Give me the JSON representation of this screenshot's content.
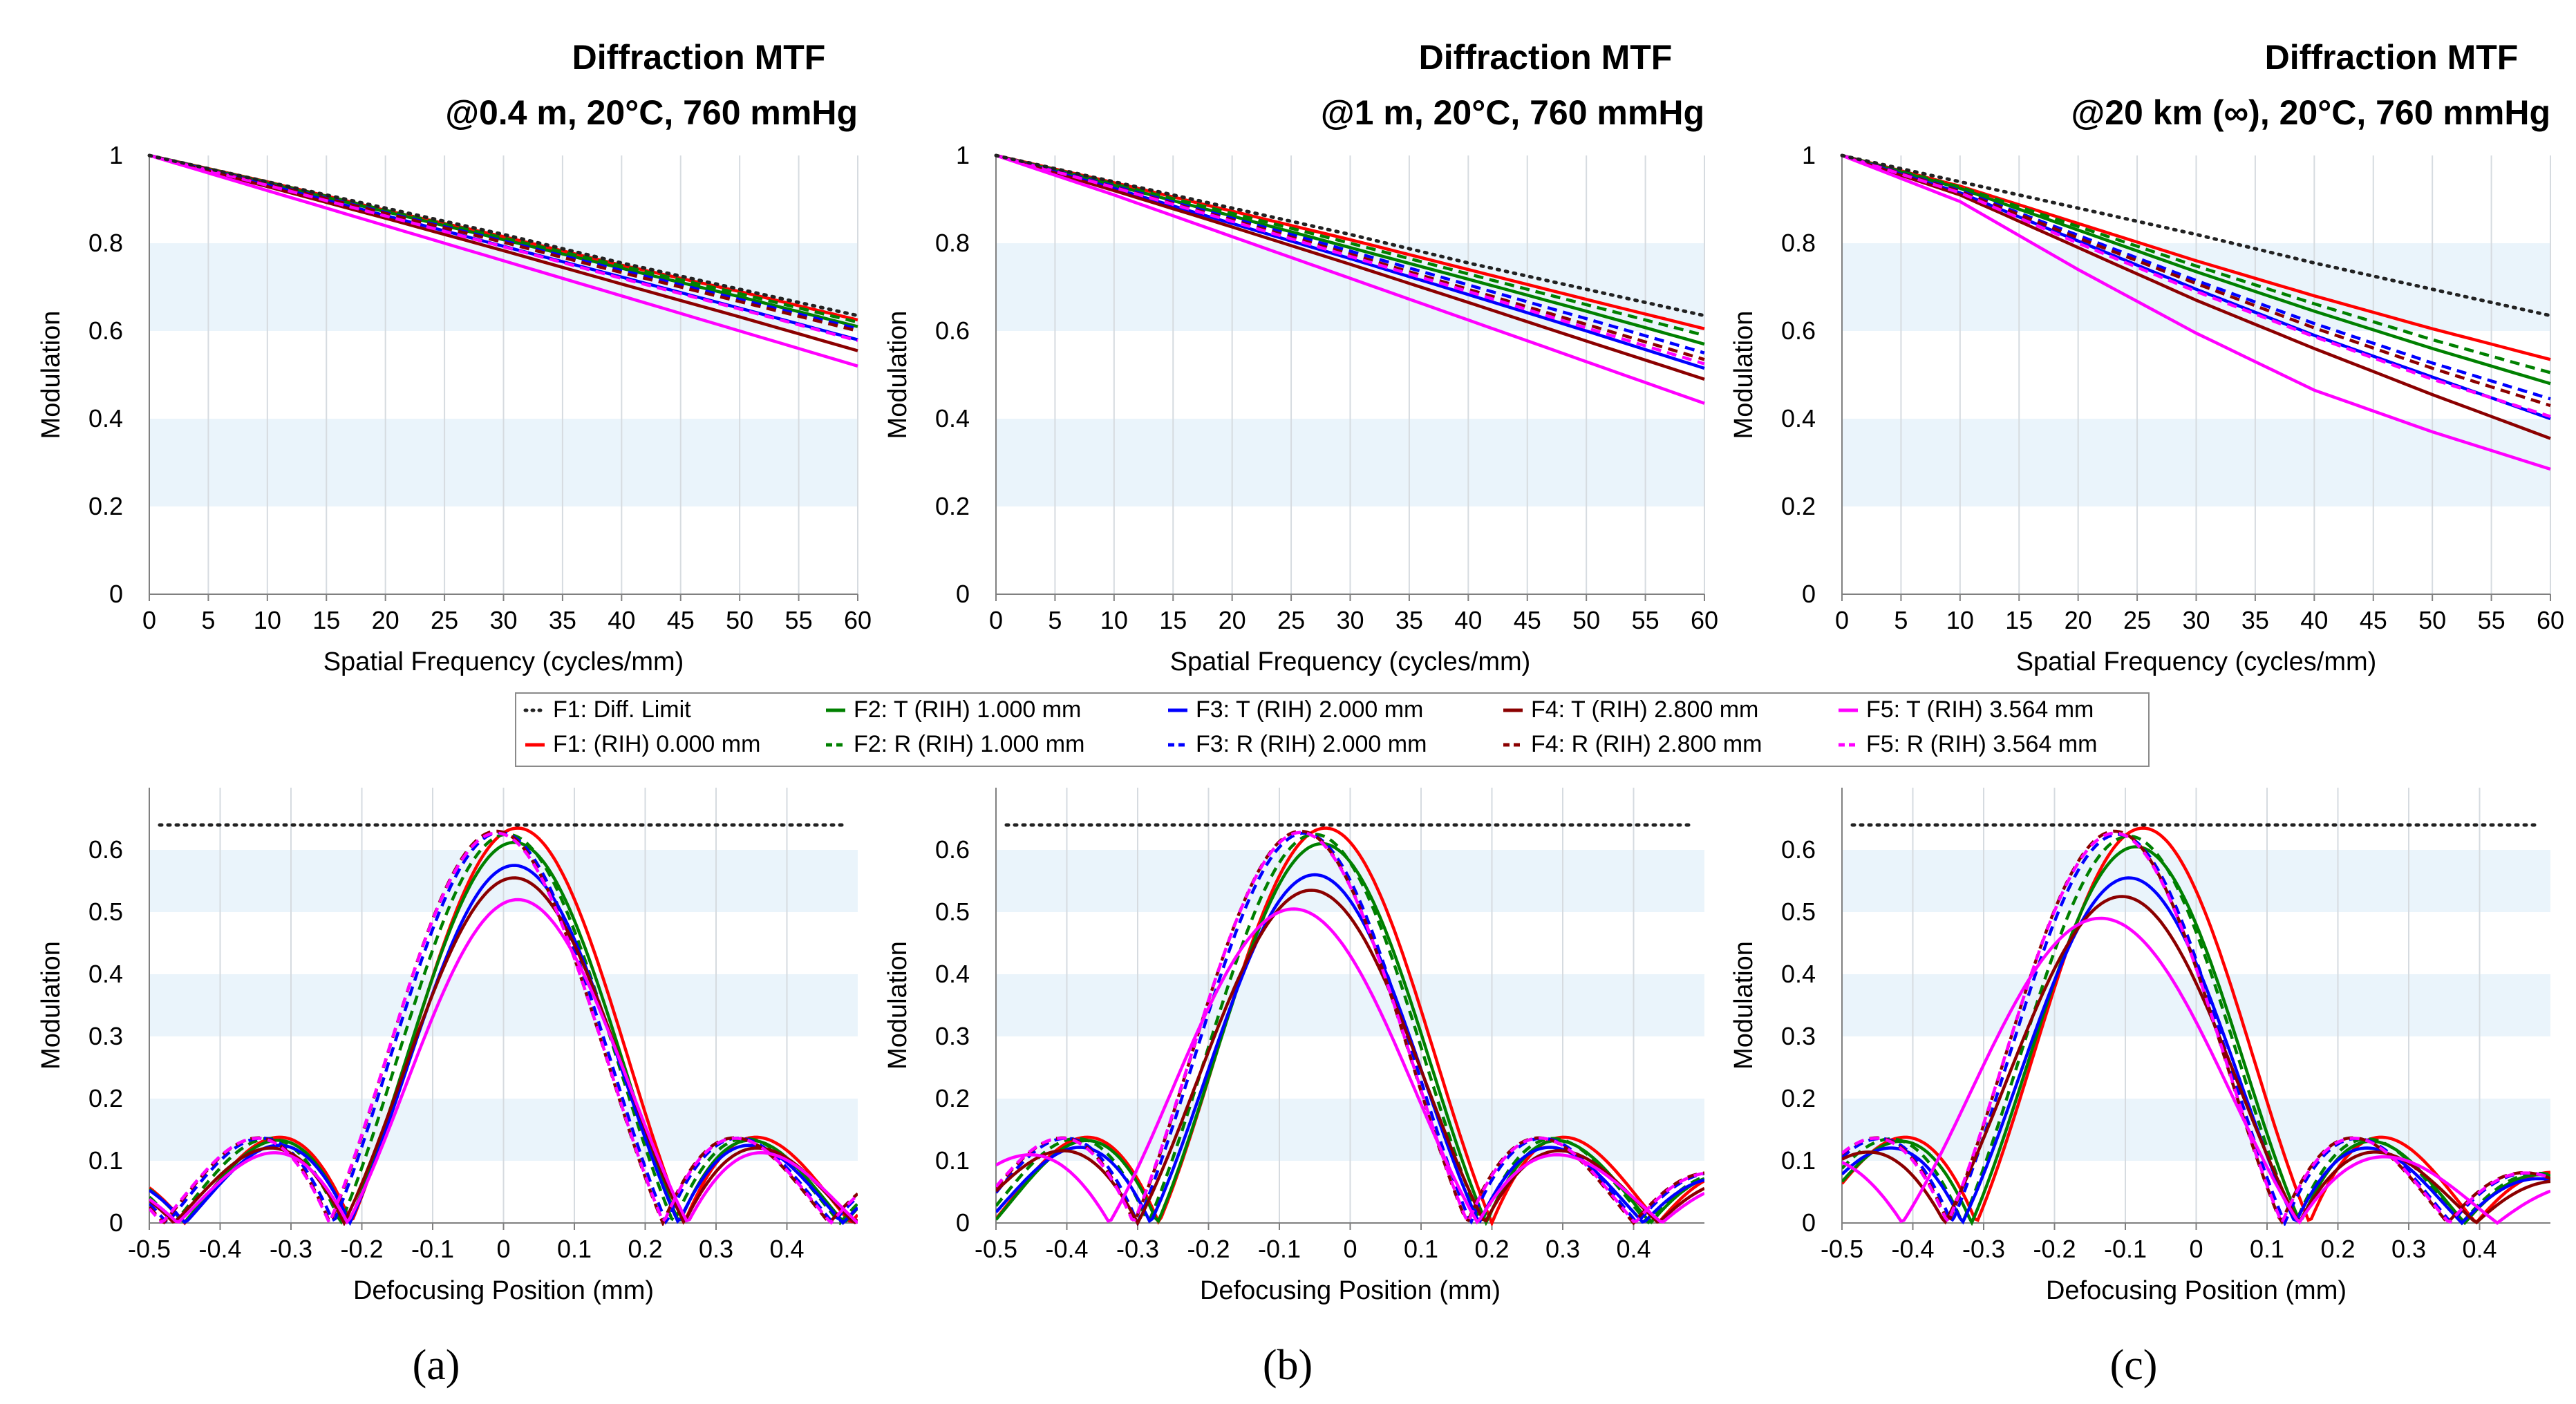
{
  "figure": {
    "panel_labels": [
      "(a)",
      "(b)",
      "(c)"
    ]
  },
  "legend": {
    "entries": [
      {
        "label": "F1: Diff. Limit",
        "color": "#222222",
        "dash": "dot"
      },
      {
        "label": "F1: (RIH) 0.000 mm",
        "color": "#ff0000",
        "dash": "solid"
      },
      {
        "label": "F2: T (RIH) 1.000 mm",
        "color": "#008000",
        "dash": "solid"
      },
      {
        "label": "F2: R (RIH) 1.000 mm",
        "color": "#008000",
        "dash": "dash"
      },
      {
        "label": "F3: T (RIH) 2.000 mm",
        "color": "#0000ff",
        "dash": "solid"
      },
      {
        "label": "F3: R (RIH) 2.000 mm",
        "color": "#0000ff",
        "dash": "dash"
      },
      {
        "label": "F4: T (RIH) 2.800 mm",
        "color": "#8b0000",
        "dash": "solid"
      },
      {
        "label": "F4: R (RIH) 2.800 mm",
        "color": "#8b0000",
        "dash": "dash"
      },
      {
        "label": "F5: T (RIH) 3.564 mm",
        "color": "#ff00ff",
        "dash": "solid"
      },
      {
        "label": "F5: R (RIH) 3.564 mm",
        "color": "#ff00ff",
        "dash": "dash"
      }
    ]
  },
  "chart_data": [
    {
      "type": "line",
      "panel": "(a)",
      "title": "Diffraction MTF",
      "subtitle": "@0.4 m, 20°C, 760 mmHg",
      "xlabel": "Spatial Frequency (cycles/mm)",
      "ylabel": "Modulation",
      "xlim": [
        0,
        60
      ],
      "ylim": [
        0,
        1
      ],
      "xticks": [
        0,
        5,
        10,
        15,
        20,
        25,
        30,
        35,
        40,
        45,
        50,
        55,
        60
      ],
      "yticks": [
        0,
        0.2,
        0.4,
        0.6,
        0.8,
        1
      ],
      "ytick_labels": [
        "0",
        "0.2",
        "0.4",
        "0.6",
        "0.8",
        "1"
      ],
      "x": [
        0,
        10,
        20,
        30,
        40,
        50,
        60
      ],
      "series": [
        {
          "name": "F1: Diff. Limit",
          "values": [
            1,
            0.94,
            0.88,
            0.82,
            0.755,
            0.695,
            0.635
          ]
        },
        {
          "name": "F1: (RIH) 0.000 mm",
          "values": [
            1,
            0.94,
            0.875,
            0.815,
            0.75,
            0.69,
            0.625
          ]
        },
        {
          "name": "F2: T (RIH) 1.000 mm",
          "values": [
            1,
            0.937,
            0.872,
            0.808,
            0.743,
            0.678,
            0.61
          ]
        },
        {
          "name": "F2: R (RIH) 1.000 mm",
          "values": [
            1,
            0.939,
            0.875,
            0.812,
            0.748,
            0.685,
            0.62
          ]
        },
        {
          "name": "F3: T (RIH) 2.000 mm",
          "values": [
            1,
            0.933,
            0.863,
            0.793,
            0.723,
            0.652,
            0.58
          ]
        },
        {
          "name": "F3: R (RIH) 2.000 mm",
          "values": [
            1,
            0.936,
            0.87,
            0.805,
            0.738,
            0.672,
            0.605
          ]
        },
        {
          "name": "F4: T (RIH) 2.800 mm",
          "values": [
            1,
            0.929,
            0.857,
            0.783,
            0.707,
            0.632,
            0.555
          ]
        },
        {
          "name": "F4: R (RIH) 2.800 mm",
          "values": [
            1,
            0.935,
            0.868,
            0.802,
            0.733,
            0.667,
            0.6
          ]
        },
        {
          "name": "F5: T (RIH) 3.564 mm",
          "values": [
            1,
            0.92,
            0.84,
            0.76,
            0.68,
            0.6,
            0.52
          ]
        },
        {
          "name": "F5: R (RIH) 3.564 mm",
          "values": [
            1,
            0.932,
            0.862,
            0.792,
            0.72,
            0.65,
            0.578
          ]
        }
      ]
    },
    {
      "type": "line",
      "panel": "(b)",
      "title": "Diffraction MTF",
      "subtitle": "@1 m, 20°C, 760 mmHg",
      "xlabel": "Spatial Frequency (cycles/mm)",
      "ylabel": "Modulation",
      "xlim": [
        0,
        60
      ],
      "ylim": [
        0,
        1
      ],
      "xticks": [
        0,
        5,
        10,
        15,
        20,
        25,
        30,
        35,
        40,
        45,
        50,
        55,
        60
      ],
      "yticks": [
        0,
        0.2,
        0.4,
        0.6,
        0.8,
        1
      ],
      "ytick_labels": [
        "0",
        "0.2",
        "0.4",
        "0.6",
        "0.8",
        "1"
      ],
      "x": [
        0,
        10,
        20,
        30,
        40,
        50,
        60
      ],
      "series": [
        {
          "name": "F1: Diff. Limit",
          "values": [
            1,
            0.94,
            0.88,
            0.82,
            0.755,
            0.695,
            0.635
          ]
        },
        {
          "name": "F1: (RIH) 0.000 mm",
          "values": [
            1,
            0.938,
            0.873,
            0.808,
            0.74,
            0.672,
            0.605
          ]
        },
        {
          "name": "F2: T (RIH) 1.000 mm",
          "values": [
            1,
            0.932,
            0.862,
            0.79,
            0.718,
            0.645,
            0.57
          ]
        },
        {
          "name": "F2: R (RIH) 1.000 mm",
          "values": [
            1,
            0.935,
            0.868,
            0.8,
            0.73,
            0.66,
            0.59
          ]
        },
        {
          "name": "F3: T (RIH) 2.000 mm",
          "values": [
            1,
            0.925,
            0.845,
            0.765,
            0.683,
            0.6,
            0.515
          ]
        },
        {
          "name": "F3: R (RIH) 2.000 mm",
          "values": [
            1,
            0.93,
            0.857,
            0.782,
            0.705,
            0.628,
            0.55
          ]
        },
        {
          "name": "F4: T (RIH) 2.800 mm",
          "values": [
            1,
            0.92,
            0.837,
            0.752,
            0.665,
            0.577,
            0.49
          ]
        },
        {
          "name": "F4: R (RIH) 2.800 mm",
          "values": [
            1,
            0.928,
            0.853,
            0.775,
            0.695,
            0.615,
            0.535
          ]
        },
        {
          "name": "F5: T (RIH) 3.564 mm",
          "values": [
            1,
            0.91,
            0.815,
            0.72,
            0.625,
            0.53,
            0.435
          ]
        },
        {
          "name": "F5: R (RIH) 3.564 mm",
          "values": [
            1,
            0.927,
            0.85,
            0.77,
            0.69,
            0.607,
            0.525
          ]
        }
      ]
    },
    {
      "type": "line",
      "panel": "(c)",
      "title": "Diffraction MTF",
      "subtitle": "@20 km (∞), 20°C, 760 mmHg",
      "xlabel": "Spatial Frequency (cycles/mm)",
      "ylabel": "Modulation",
      "xlim": [
        0,
        60
      ],
      "ylim": [
        0,
        1
      ],
      "xticks": [
        0,
        5,
        10,
        15,
        20,
        25,
        30,
        35,
        40,
        45,
        50,
        55,
        60
      ],
      "yticks": [
        0,
        0.2,
        0.4,
        0.6,
        0.8,
        1
      ],
      "ytick_labels": [
        "0",
        "0.2",
        "0.4",
        "0.6",
        "0.8",
        "1"
      ],
      "x": [
        0,
        10,
        20,
        30,
        40,
        50,
        60
      ],
      "series": [
        {
          "name": "F1: Diff. Limit",
          "values": [
            1,
            0.94,
            0.88,
            0.82,
            0.755,
            0.695,
            0.635
          ]
        },
        {
          "name": "F1: (RIH) 0.000 mm",
          "values": [
            1,
            0.93,
            0.845,
            0.76,
            0.68,
            0.605,
            0.535
          ]
        },
        {
          "name": "F2: T (RIH) 1.000 mm",
          "values": [
            1,
            0.925,
            0.83,
            0.735,
            0.645,
            0.56,
            0.48
          ]
        },
        {
          "name": "F2: R (RIH) 1.000 mm",
          "values": [
            1,
            0.928,
            0.838,
            0.748,
            0.662,
            0.58,
            0.505
          ]
        },
        {
          "name": "F3: T (RIH) 2.000 mm",
          "values": [
            1,
            0.915,
            0.805,
            0.695,
            0.59,
            0.495,
            0.4
          ]
        },
        {
          "name": "F3: R (RIH) 2.000 mm",
          "values": [
            1,
            0.92,
            0.818,
            0.715,
            0.617,
            0.527,
            0.445
          ]
        },
        {
          "name": "F4: T (RIH) 2.800 mm",
          "values": [
            1,
            0.91,
            0.79,
            0.67,
            0.56,
            0.455,
            0.355
          ]
        },
        {
          "name": "F4: R (RIH) 2.800 mm",
          "values": [
            1,
            0.918,
            0.812,
            0.708,
            0.607,
            0.515,
            0.43
          ]
        },
        {
          "name": "F5: T (RIH) 3.564 mm",
          "values": [
            1,
            0.895,
            0.74,
            0.595,
            0.465,
            0.37,
            0.285
          ]
        },
        {
          "name": "F5: R (RIH) 3.564 mm",
          "values": [
            1,
            0.915,
            0.8,
            0.69,
            0.587,
            0.49,
            0.405
          ]
        }
      ]
    },
    {
      "type": "line",
      "panel": "(a)",
      "xlabel": "Defocusing Position (mm)",
      "ylabel": "Modulation",
      "xlim": [
        -0.5,
        0.5
      ],
      "ylim": [
        0,
        0.7
      ],
      "xticks": [
        -0.5,
        -0.4,
        -0.3,
        -0.2,
        -0.1,
        0,
        0.1,
        0.2,
        0.3,
        0.4
      ],
      "xtick_labels": [
        "-0.5",
        "-0.4",
        "-0.3",
        "-0.2",
        "-0.1",
        "0",
        "0.1",
        "0.2",
        "0.3",
        "0.4"
      ],
      "yticks": [
        0,
        0.1,
        0.2,
        0.3,
        0.4,
        0.5,
        0.6
      ],
      "ytick_labels": [
        "0",
        "0.1",
        "0.2",
        "0.3",
        "0.4",
        "0.5",
        "0.6"
      ],
      "diff_limit": 0.64,
      "series": [
        {
          "name": "F1: (RIH) 0.000 mm",
          "peak_x": 0.02,
          "peak": 0.635,
          "half_width": 0.235
        },
        {
          "name": "F2: T (RIH) 1.000 mm",
          "peak_x": 0.015,
          "peak": 0.612,
          "half_width": 0.233
        },
        {
          "name": "F2: R (RIH) 1.000 mm",
          "peak_x": 0.005,
          "peak": 0.625,
          "half_width": 0.235
        },
        {
          "name": "F3: T (RIH) 2.000 mm",
          "peak_x": 0.015,
          "peak": 0.575,
          "half_width": 0.232
        },
        {
          "name": "F3: R (RIH) 2.000 mm",
          "peak_x": -0.005,
          "peak": 0.628,
          "half_width": 0.235
        },
        {
          "name": "F4: T (RIH) 2.800 mm",
          "peak_x": 0.015,
          "peak": 0.555,
          "half_width": 0.24
        },
        {
          "name": "F4: R (RIH) 2.800 mm",
          "peak_x": -0.01,
          "peak": 0.63,
          "half_width": 0.235
        },
        {
          "name": "F5: T (RIH) 3.564 mm",
          "peak_x": 0.02,
          "peak": 0.52,
          "half_width": 0.24
        },
        {
          "name": "F5: R (RIH) 3.564 mm",
          "peak_x": -0.01,
          "peak": 0.627,
          "half_width": 0.236
        }
      ]
    },
    {
      "type": "line",
      "panel": "(b)",
      "xlabel": "Defocusing Position (mm)",
      "ylabel": "Modulation",
      "xlim": [
        -0.5,
        0.5
      ],
      "ylim": [
        0,
        0.7
      ],
      "xticks": [
        -0.5,
        -0.4,
        -0.3,
        -0.2,
        -0.1,
        0,
        0.1,
        0.2,
        0.3,
        0.4
      ],
      "xtick_labels": [
        "-0.5",
        "-0.4",
        "-0.3",
        "-0.2",
        "-0.1",
        "0",
        "0.1",
        "0.2",
        "0.3",
        "0.4"
      ],
      "yticks": [
        0,
        0.1,
        0.2,
        0.3,
        0.4,
        0.5,
        0.6
      ],
      "ytick_labels": [
        "0",
        "0.1",
        "0.2",
        "0.3",
        "0.4",
        "0.5",
        "0.6"
      ],
      "diff_limit": 0.64,
      "series": [
        {
          "name": "F1: (RIH) 0.000 mm",
          "peak_x": -0.035,
          "peak": 0.635,
          "half_width": 0.235
        },
        {
          "name": "F2: T (RIH) 1.000 mm",
          "peak_x": -0.04,
          "peak": 0.61,
          "half_width": 0.232
        },
        {
          "name": "F2: R (RIH) 1.000 mm",
          "peak_x": -0.05,
          "peak": 0.625,
          "half_width": 0.235
        },
        {
          "name": "F3: T (RIH) 2.000 mm",
          "peak_x": -0.05,
          "peak": 0.56,
          "half_width": 0.232
        },
        {
          "name": "F3: R (RIH) 2.000 mm",
          "peak_x": -0.065,
          "peak": 0.627,
          "half_width": 0.235
        },
        {
          "name": "F4: T (RIH) 2.800 mm",
          "peak_x": -0.055,
          "peak": 0.535,
          "half_width": 0.245
        },
        {
          "name": "F4: R (RIH) 2.800 mm",
          "peak_x": -0.07,
          "peak": 0.63,
          "half_width": 0.235
        },
        {
          "name": "F5: T (RIH) 3.564 mm",
          "peak_x": -0.08,
          "peak": 0.505,
          "half_width": 0.26
        },
        {
          "name": "F5: R (RIH) 3.564 mm",
          "peak_x": -0.07,
          "peak": 0.628,
          "half_width": 0.236
        }
      ]
    },
    {
      "type": "line",
      "panel": "(c)",
      "xlabel": "Defocusing Position (mm)",
      "ylabel": "Modulation",
      "xlim": [
        -0.5,
        0.5
      ],
      "ylim": [
        0,
        0.7
      ],
      "xticks": [
        -0.5,
        -0.4,
        -0.3,
        -0.2,
        -0.1,
        0,
        0.1,
        0.2,
        0.3,
        0.4
      ],
      "xtick_labels": [
        "-0.5",
        "-0.4",
        "-0.3",
        "-0.2",
        "-0.1",
        "0",
        "0.1",
        "0.2",
        "0.3",
        "0.4"
      ],
      "yticks": [
        0,
        0.1,
        0.2,
        0.3,
        0.4,
        0.5,
        0.6
      ],
      "ytick_labels": [
        "0",
        "0.1",
        "0.2",
        "0.3",
        "0.4",
        "0.5",
        "0.6"
      ],
      "diff_limit": 0.64,
      "series": [
        {
          "name": "F1: (RIH) 0.000 mm",
          "peak_x": -0.075,
          "peak": 0.635,
          "half_width": 0.235
        },
        {
          "name": "F2: T (RIH) 1.000 mm",
          "peak_x": -0.085,
          "peak": 0.605,
          "half_width": 0.232
        },
        {
          "name": "F2: R (RIH) 1.000 mm",
          "peak_x": -0.095,
          "peak": 0.622,
          "half_width": 0.235
        },
        {
          "name": "F3: T (RIH) 2.000 mm",
          "peak_x": -0.095,
          "peak": 0.555,
          "half_width": 0.235
        },
        {
          "name": "F3: R (RIH) 2.000 mm",
          "peak_x": -0.11,
          "peak": 0.625,
          "half_width": 0.235
        },
        {
          "name": "F4: T (RIH) 2.800 mm",
          "peak_x": -0.105,
          "peak": 0.525,
          "half_width": 0.25
        },
        {
          "name": "F4: R (RIH) 2.800 mm",
          "peak_x": -0.115,
          "peak": 0.63,
          "half_width": 0.235
        },
        {
          "name": "F5: T (RIH) 3.564 mm",
          "peak_x": -0.135,
          "peak": 0.49,
          "half_width": 0.28
        },
        {
          "name": "F5: R (RIH) 3.564 mm",
          "peak_x": -0.115,
          "peak": 0.627,
          "half_width": 0.236
        }
      ]
    }
  ]
}
